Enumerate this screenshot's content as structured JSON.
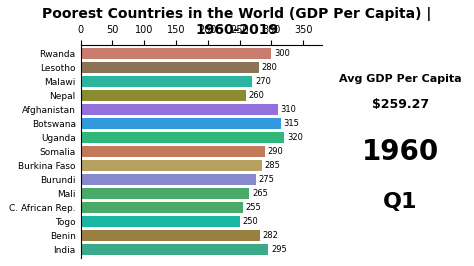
{
  "chart_data": {
    "type": "bar",
    "orientation": "horizontal",
    "title": "Poorest Countries in the World (GDP Per Capita) | 1960-2019",
    "categories": [
      "Rwanda",
      "Lesotho",
      "Malawi",
      "Nepal",
      "Afghanistan",
      "Botswana",
      "Uganda",
      "Somalia",
      "Burkina Faso",
      "Burundi",
      "Mali",
      "C. African Rep.",
      "Togo",
      "Benin",
      "India"
    ],
    "values": [
      300,
      280,
      270,
      260,
      310,
      315,
      320,
      290,
      285,
      275,
      265,
      255,
      250,
      282,
      295
    ],
    "colors": [
      "#c87d6e",
      "#8B7355",
      "#2bb5a0",
      "#8B8B30",
      "#9370DB",
      "#3399DD",
      "#2eb87a",
      "#c47a5a",
      "#b8a060",
      "#8888cc",
      "#4aaa6a",
      "#4aaa6a",
      "#1ab8a0",
      "#9a8040",
      "#3aaa8a"
    ],
    "xlim": [
      0,
      380
    ],
    "xticks": [
      0,
      50,
      100,
      150,
      200,
      250,
      300,
      350
    ],
    "data_labels": true,
    "grid": false,
    "annotations": [
      "Avg GDP Per Capita",
      "$259.27",
      "1960",
      "Q1"
    ]
  }
}
